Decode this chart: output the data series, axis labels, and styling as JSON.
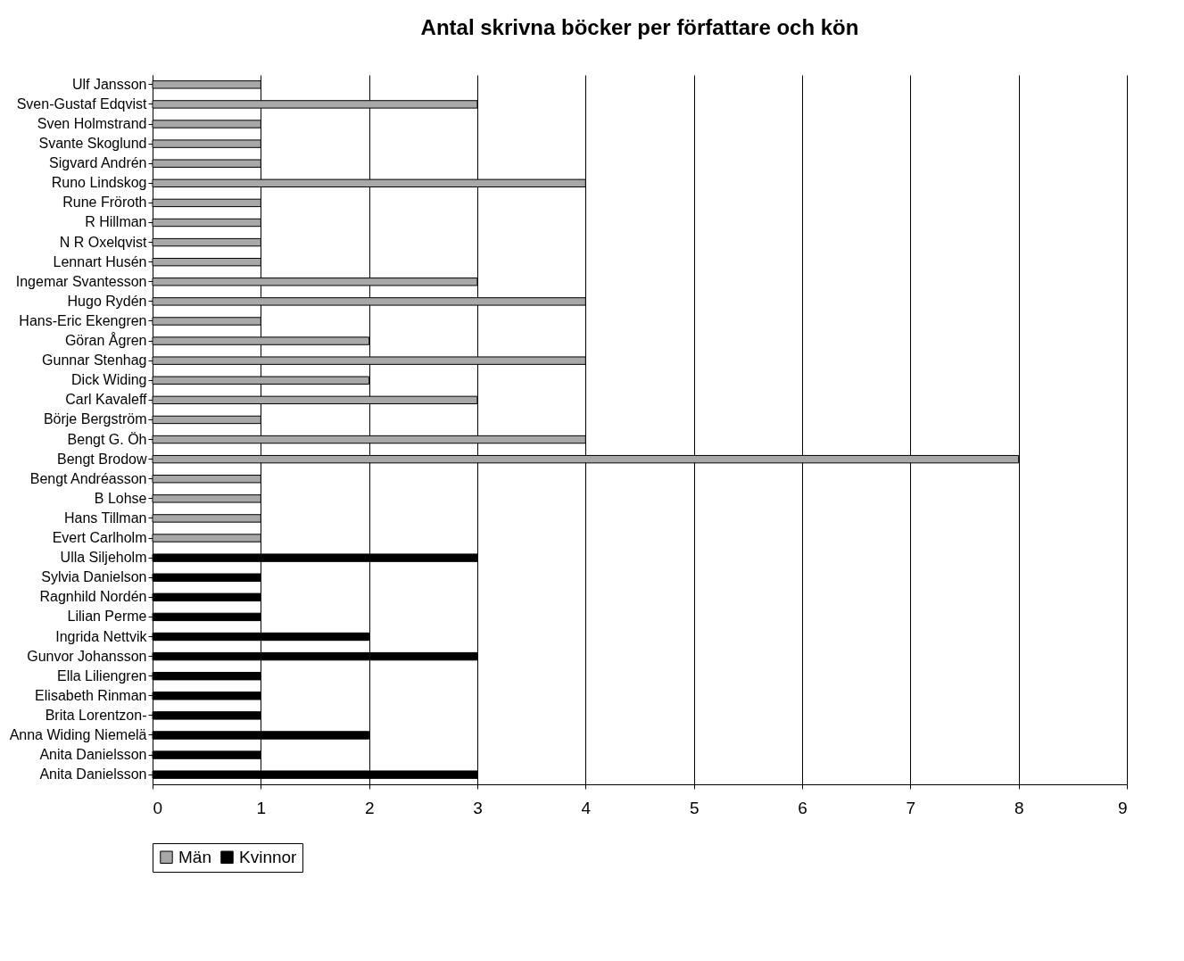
{
  "chart_data": {
    "type": "bar",
    "orientation": "horizontal",
    "title": "Antal skrivna böcker per författare och kön",
    "categories": [
      "Ulf Jansson",
      "Sven-Gustaf Edqvist",
      "Sven Holmstrand",
      "Svante Skoglund",
      "Sigvard Andrén",
      "Runo Lindskog",
      "Rune Fröroth",
      "R Hillman",
      "N R Oxelqvist",
      "Lennart Husén",
      "Ingemar Svantesson",
      "Hugo Rydén",
      "Hans-Eric Ekengren",
      "Göran Ågren",
      "Gunnar Stenhag",
      "Dick Widing",
      "Carl Kavaleff",
      "Börje Bergström",
      "Bengt G. Öh",
      "Bengt Brodow",
      "Bengt Andréasson",
      "B Lohse",
      "Hans Tillman",
      "Evert Carlholm",
      "Ulla Siljeholm",
      "Sylvia Danielson",
      "Ragnhild Nordén",
      "Lilian Perme",
      "Ingrida Nettvik",
      "Gunvor Johansson",
      "Ella Liliengren",
      "Elisabeth Rinman",
      "Brita Lorentzon-",
      "Anna Widing Niemelä",
      "Anita Danielsson",
      "Anita Danielsson"
    ],
    "series": [
      {
        "name": "Män",
        "color": "#a8a8a8",
        "values": [
          1,
          3,
          1,
          1,
          1,
          4,
          1,
          1,
          1,
          1,
          3,
          4,
          1,
          2,
          4,
          2,
          3,
          1,
          4,
          8,
          1,
          1,
          1,
          1,
          null,
          null,
          null,
          null,
          null,
          null,
          null,
          null,
          null,
          null,
          null,
          null
        ]
      },
      {
        "name": "Kvinnor",
        "color": "#000000",
        "values": [
          null,
          null,
          null,
          null,
          null,
          null,
          null,
          null,
          null,
          null,
          null,
          null,
          null,
          null,
          null,
          null,
          null,
          null,
          null,
          null,
          null,
          null,
          null,
          null,
          3,
          1,
          1,
          1,
          2,
          3,
          1,
          1,
          1,
          2,
          1,
          3
        ]
      }
    ],
    "xlim": [
      0,
      9
    ],
    "xticks": [
      0,
      1,
      2,
      3,
      4,
      5,
      6,
      7,
      8,
      9
    ],
    "grid": "x",
    "legend": "bottom"
  }
}
